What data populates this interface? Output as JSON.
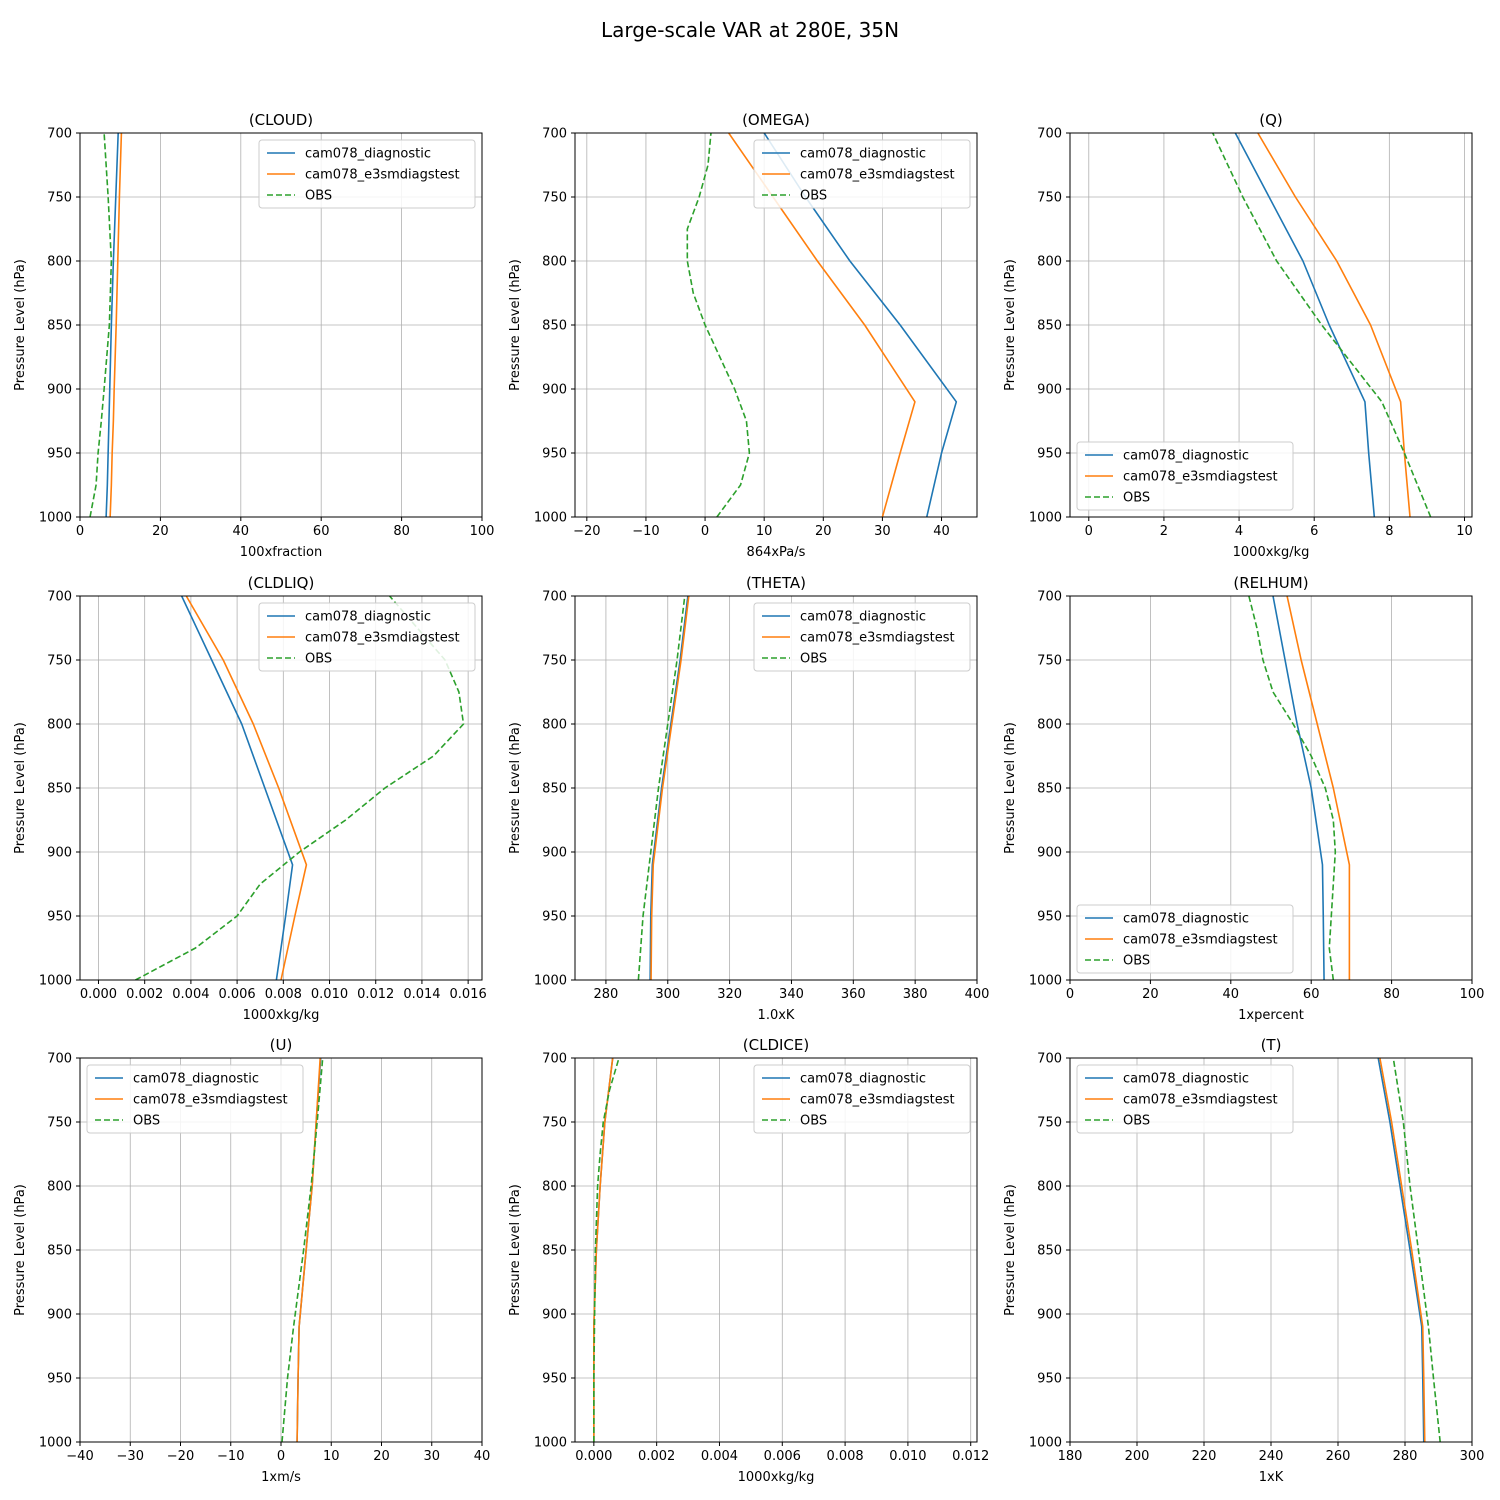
{
  "figure": {
    "title": "Large-scale VAR at 280E, 35N"
  },
  "chart_data": [
    {
      "type": "line",
      "title": "(CLOUD)",
      "xlabel": "100xfraction",
      "ylabel": "Pressure Level (hPa)",
      "xlim": [
        0,
        100
      ],
      "ylim": [
        1000,
        700
      ],
      "grid": true,
      "legend": "upper right",
      "xticks": [
        0,
        20,
        40,
        60,
        80,
        100
      ],
      "xtick_labels": [
        "0",
        "20",
        "40",
        "60",
        "80",
        "100"
      ],
      "yticks": [
        700,
        750,
        800,
        850,
        900,
        950,
        1000
      ],
      "ytick_labels": [
        "700",
        "750",
        "800",
        "850",
        "900",
        "950",
        "1000"
      ],
      "levels": [
        1000,
        975,
        950,
        925,
        900,
        850,
        800,
        750,
        700
      ],
      "series": [
        {
          "name": "cam078_diagnostic",
          "color": "#1f77b4",
          "style": "solid",
          "values": [
            6.5,
            6.8,
            7.0,
            7.2,
            7.4,
            7.8,
            8.3,
            8.9,
            9.5
          ]
        },
        {
          "name": "cam078_e3smdiagstest",
          "color": "#ff7f0e",
          "style": "solid",
          "values": [
            7.5,
            7.8,
            8.0,
            8.3,
            8.5,
            9.0,
            9.4,
            9.8,
            10.3
          ]
        },
        {
          "name": "OBS",
          "color": "#2ca02c",
          "style": "dashed",
          "values": [
            2.5,
            4.0,
            4.5,
            5.3,
            6.0,
            7.3,
            7.8,
            7.0,
            6.0
          ]
        }
      ]
    },
    {
      "type": "line",
      "title": "(OMEGA)",
      "xlabel": "864xPa/s",
      "ylabel": "Pressure Level (hPa)",
      "xlim": [
        -22,
        46
      ],
      "ylim": [
        1000,
        700
      ],
      "grid": true,
      "legend": "upper right",
      "xticks": [
        -20,
        -10,
        0,
        10,
        20,
        30,
        40
      ],
      "xtick_labels": [
        "−20",
        "−10",
        "0",
        "10",
        "20",
        "30",
        "40"
      ],
      "yticks": [
        700,
        750,
        800,
        850,
        900,
        950,
        1000
      ],
      "ytick_labels": [
        "700",
        "750",
        "800",
        "850",
        "900",
        "950",
        "1000"
      ],
      "levels": [
        1000,
        950,
        910,
        850,
        800,
        750,
        700
      ],
      "series": [
        {
          "name": "cam078_diagnostic",
          "color": "#1f77b4",
          "style": "solid",
          "values": [
            37.5,
            40.0,
            42.5,
            33.0,
            24.5,
            17.0,
            10.0
          ]
        },
        {
          "name": "cam078_e3smdiagstest",
          "color": "#ff7f0e",
          "style": "solid",
          "values": [
            30.0,
            33.0,
            35.5,
            27.0,
            19.0,
            11.5,
            4.0
          ]
        }
      ],
      "obs": {
        "name": "OBS",
        "color": "#2ca02c",
        "style": "dashed",
        "levels": [
          1000,
          975,
          950,
          925,
          900,
          875,
          850,
          825,
          800,
          775,
          750,
          725,
          700
        ],
        "values": [
          2.0,
          6.0,
          7.5,
          7.0,
          5.0,
          2.5,
          0.0,
          -2.0,
          -3.0,
          -3.0,
          -1.0,
          0.5,
          1.0
        ]
      }
    },
    {
      "type": "line",
      "title": "(Q)",
      "xlabel": "1000xkg/kg",
      "ylabel": "Pressure Level (hPa)",
      "xlim": [
        -0.5,
        10.2
      ],
      "ylim": [
        1000,
        700
      ],
      "grid": true,
      "legend": "lower left",
      "xticks": [
        0,
        2,
        4,
        6,
        8,
        10
      ],
      "xtick_labels": [
        "0",
        "2",
        "4",
        "6",
        "8",
        "10"
      ],
      "yticks": [
        700,
        750,
        800,
        850,
        900,
        950,
        1000
      ],
      "ytick_labels": [
        "700",
        "750",
        "800",
        "850",
        "900",
        "950",
        "1000"
      ],
      "levels": [
        1000,
        950,
        910,
        850,
        800,
        750,
        700
      ],
      "series": [
        {
          "name": "cam078_diagnostic",
          "color": "#1f77b4",
          "style": "solid",
          "values": [
            7.6,
            7.45,
            7.35,
            6.4,
            5.7,
            4.8,
            3.9
          ]
        },
        {
          "name": "cam078_e3smdiagstest",
          "color": "#ff7f0e",
          "style": "solid",
          "values": [
            8.55,
            8.4,
            8.3,
            7.5,
            6.6,
            5.5,
            4.5
          ]
        },
        {
          "name": "OBS",
          "color": "#2ca02c",
          "style": "dashed",
          "values": [
            9.1,
            8.4,
            7.8,
            6.2,
            5.0,
            4.1,
            3.3
          ]
        }
      ]
    },
    {
      "type": "line",
      "title": "(CLDLIQ)",
      "xlabel": "1000xkg/kg",
      "ylabel": "Pressure Level (hPa)",
      "xlim": [
        -0.0008,
        0.0166
      ],
      "ylim": [
        1000,
        700
      ],
      "grid": true,
      "legend": "upper right",
      "xticks": [
        0,
        0.002,
        0.004,
        0.006,
        0.008,
        0.01,
        0.012,
        0.014,
        0.016
      ],
      "xtick_labels": [
        "0.000",
        "0.002",
        "0.004",
        "0.006",
        "0.008",
        "0.010",
        "0.012",
        "0.014",
        "0.016"
      ],
      "yticks": [
        700,
        750,
        800,
        850,
        900,
        950,
        1000
      ],
      "ytick_labels": [
        "700",
        "750",
        "800",
        "850",
        "900",
        "950",
        "1000"
      ],
      "levels": [
        1000,
        950,
        910,
        850,
        800,
        750,
        700
      ],
      "series": [
        {
          "name": "cam078_diagnostic",
          "color": "#1f77b4",
          "style": "solid",
          "values": [
            0.0077,
            0.0081,
            0.0084,
            0.0072,
            0.0062,
            0.0049,
            0.0036
          ]
        },
        {
          "name": "cam078_e3smdiagstest",
          "color": "#ff7f0e",
          "style": "solid",
          "values": [
            0.0079,
            0.0085,
            0.009,
            0.0078,
            0.0067,
            0.0054,
            0.0038
          ]
        }
      ],
      "obs": {
        "name": "OBS",
        "color": "#2ca02c",
        "style": "dashed",
        "levels": [
          1000,
          975,
          950,
          925,
          900,
          875,
          850,
          825,
          800,
          775,
          750,
          725,
          700
        ],
        "values": [
          0.0016,
          0.0042,
          0.006,
          0.007,
          0.0087,
          0.0107,
          0.0124,
          0.0145,
          0.0158,
          0.0156,
          0.015,
          0.0138,
          0.0126
        ]
      }
    },
    {
      "type": "line",
      "title": "(THETA)",
      "xlabel": "1.0xK",
      "ylabel": "Pressure Level (hPa)",
      "xlim": [
        270,
        400
      ],
      "ylim": [
        1000,
        700
      ],
      "grid": true,
      "legend": "upper right",
      "xticks": [
        280,
        300,
        320,
        340,
        360,
        380,
        400
      ],
      "xtick_labels": [
        "280",
        "300",
        "320",
        "340",
        "360",
        "380",
        "400"
      ],
      "yticks": [
        700,
        750,
        800,
        850,
        900,
        950,
        1000
      ],
      "ytick_labels": [
        "700",
        "750",
        "800",
        "850",
        "900",
        "950",
        "1000"
      ],
      "levels": [
        1000,
        950,
        910,
        850,
        800,
        750,
        700
      ],
      "series": [
        {
          "name": "cam078_diagnostic",
          "color": "#1f77b4",
          "style": "solid",
          "values": [
            294.3,
            294.5,
            295,
            298,
            301,
            304,
            306.5
          ]
        },
        {
          "name": "cam078_e3smdiagstest",
          "color": "#ff7f0e",
          "style": "solid",
          "values": [
            294.6,
            294.8,
            295.3,
            298.3,
            301.3,
            304.3,
            306.8
          ]
        },
        {
          "name": "OBS",
          "color": "#2ca02c",
          "style": "dashed",
          "values": [
            290.5,
            292,
            294,
            297,
            300,
            303,
            305.5
          ]
        }
      ]
    },
    {
      "type": "line",
      "title": "(RELHUM)",
      "xlabel": "1xpercent",
      "ylabel": "Pressure Level (hPa)",
      "xlim": [
        0,
        100
      ],
      "ylim": [
        1000,
        700
      ],
      "grid": true,
      "legend": "lower left",
      "xticks": [
        0,
        20,
        40,
        60,
        80,
        100
      ],
      "xtick_labels": [
        "0",
        "20",
        "40",
        "60",
        "80",
        "100"
      ],
      "yticks": [
        700,
        750,
        800,
        850,
        900,
        950,
        1000
      ],
      "ytick_labels": [
        "700",
        "750",
        "800",
        "850",
        "900",
        "950",
        "1000"
      ],
      "levels": [
        1000,
        950,
        910,
        850,
        800,
        750,
        700
      ],
      "series": [
        {
          "name": "cam078_diagnostic",
          "color": "#1f77b4",
          "style": "solid",
          "values": [
            63.2,
            63,
            62.8,
            60,
            56.5,
            53.5,
            50.5
          ]
        },
        {
          "name": "cam078_e3smdiagstest",
          "color": "#ff7f0e",
          "style": "solid",
          "values": [
            69.5,
            69.5,
            69.5,
            65.5,
            61.5,
            57.5,
            54
          ]
        }
      ],
      "obs": {
        "name": "OBS",
        "color": "#2ca02c",
        "style": "dashed",
        "levels": [
          1000,
          975,
          950,
          925,
          900,
          875,
          850,
          825,
          800,
          775,
          750,
          725,
          700
        ],
        "values": [
          65.5,
          64.5,
          65,
          65.5,
          66,
          65.5,
          63.5,
          60,
          55.5,
          50.5,
          48,
          46.5,
          44.5
        ]
      }
    },
    {
      "type": "line",
      "title": "(U)",
      "xlabel": "1xm/s",
      "ylabel": "Pressure Level (hPa)",
      "xlim": [
        -40,
        40
      ],
      "ylim": [
        1000,
        700
      ],
      "grid": true,
      "legend": "upper left",
      "xticks": [
        -40,
        -30,
        -20,
        -10,
        0,
        10,
        20,
        30,
        40
      ],
      "xtick_labels": [
        "−40",
        "−30",
        "−20",
        "−10",
        "0",
        "10",
        "20",
        "30",
        "40"
      ],
      "yticks": [
        700,
        750,
        800,
        850,
        900,
        950,
        1000
      ],
      "ytick_labels": [
        "700",
        "750",
        "800",
        "850",
        "900",
        "950",
        "1000"
      ],
      "levels": [
        1000,
        950,
        910,
        850,
        800,
        750,
        700
      ],
      "series": [
        {
          "name": "cam078_diagnostic",
          "color": "#1f77b4",
          "style": "solid",
          "values": [
            3.2,
            3.4,
            3.6,
            5,
            6.2,
            7,
            7.9
          ]
        },
        {
          "name": "cam078_e3smdiagstest",
          "color": "#ff7f0e",
          "style": "solid",
          "values": [
            3.2,
            3.4,
            3.6,
            5,
            6.2,
            7,
            7.8
          ]
        },
        {
          "name": "OBS",
          "color": "#2ca02c",
          "style": "dashed",
          "values": [
            0.2,
            1.3,
            2.5,
            4.5,
            6,
            7.2,
            8.3
          ]
        }
      ]
    },
    {
      "type": "line",
      "title": "(CLDICE)",
      "xlabel": "1000xkg/kg",
      "ylabel": "Pressure Level (hPa)",
      "xlim": [
        -0.0006,
        0.0122
      ],
      "ylim": [
        1000,
        700
      ],
      "grid": true,
      "legend": "upper right",
      "xticks": [
        0,
        0.002,
        0.004,
        0.006,
        0.008,
        0.01,
        0.012
      ],
      "xtick_labels": [
        "0.000",
        "0.002",
        "0.004",
        "0.006",
        "0.008",
        "0.010",
        "0.012"
      ],
      "yticks": [
        700,
        750,
        800,
        850,
        900,
        950,
        1000
      ],
      "ytick_labels": [
        "700",
        "750",
        "800",
        "850",
        "900",
        "950",
        "1000"
      ],
      "levels": [
        1000,
        950,
        910,
        850,
        800,
        750,
        700
      ],
      "series": [
        {
          "name": "cam078_diagnostic",
          "color": "#1f77b4",
          "style": "solid",
          "values": [
            0,
            0,
            0,
            8e-05,
            0.0002,
            0.00035,
            0.0006
          ]
        },
        {
          "name": "cam078_e3smdiagstest",
          "color": "#ff7f0e",
          "style": "solid",
          "values": [
            0,
            0,
            0,
            8e-05,
            0.0002,
            0.00035,
            0.0006
          ]
        }
      ],
      "obs": {
        "name": "OBS",
        "color": "#2ca02c",
        "style": "dashed",
        "levels": [
          1000,
          950,
          910,
          850,
          800,
          775,
          750,
          725,
          700
        ],
        "values": [
          0,
          0,
          2e-05,
          5e-05,
          0.00012,
          0.0002,
          0.0003,
          0.0005,
          0.0008
        ]
      }
    },
    {
      "type": "line",
      "title": "(T)",
      "xlabel": "1xK",
      "ylabel": "Pressure Level (hPa)",
      "xlim": [
        180,
        300
      ],
      "ylim": [
        1000,
        700
      ],
      "grid": true,
      "legend": "upper left",
      "xticks": [
        180,
        200,
        220,
        240,
        260,
        280,
        300
      ],
      "xtick_labels": [
        "180",
        "200",
        "220",
        "240",
        "260",
        "280",
        "300"
      ],
      "yticks": [
        700,
        750,
        800,
        850,
        900,
        950,
        1000
      ],
      "ytick_labels": [
        "700",
        "750",
        "800",
        "850",
        "900",
        "950",
        "1000"
      ],
      "levels": [
        1000,
        950,
        910,
        850,
        800,
        750,
        700
      ],
      "series": [
        {
          "name": "cam078_diagnostic",
          "color": "#1f77b4",
          "style": "solid",
          "values": [
            285.6,
            285.3,
            285,
            281.5,
            278.5,
            275.5,
            272
          ]
        },
        {
          "name": "cam078_e3smdiagstest",
          "color": "#ff7f0e",
          "style": "solid",
          "values": [
            285.9,
            285.6,
            285.3,
            282,
            279,
            276,
            272.5
          ]
        },
        {
          "name": "OBS",
          "color": "#2ca02c",
          "style": "dashed",
          "values": [
            290.5,
            288.5,
            287,
            284,
            281.5,
            279.5,
            276.5
          ]
        }
      ]
    }
  ]
}
